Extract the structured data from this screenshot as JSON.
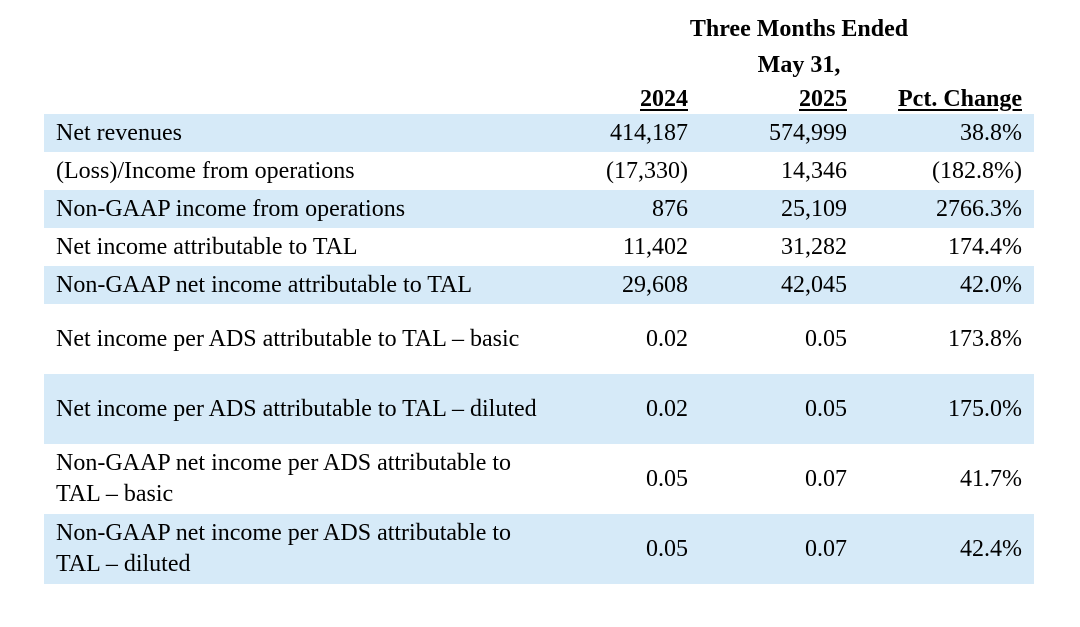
{
  "header": {
    "group_title_line1": "Three Months Ended",
    "group_title_line2": "May 31,",
    "col_2024": "2024",
    "col_2025": "2025",
    "col_pct": "Pct. Change"
  },
  "rows": [
    {
      "label": "Net revenues",
      "v2024": "414,187",
      "v2025": "574,999",
      "pct": "38.8%"
    },
    {
      "label": "(Loss)/Income from operations",
      "v2024": "(17,330)",
      "v2025": "14,346",
      "pct": "(182.8%)"
    },
    {
      "label": "Non-GAAP income from operations",
      "v2024": "876",
      "v2025": "25,109",
      "pct": "2766.3%"
    },
    {
      "label": "Net income attributable to TAL",
      "v2024": "11,402",
      "v2025": "31,282",
      "pct": "174.4%"
    },
    {
      "label": "Non-GAAP net income attributable to TAL",
      "v2024": "29,608",
      "v2025": "42,045",
      "pct": "42.0%"
    },
    {
      "label": "Net income per ADS attributable to TAL – basic",
      "v2024": "0.02",
      "v2025": "0.05",
      "pct": "173.8%"
    },
    {
      "label": "Net income per ADS attributable to TAL – diluted",
      "v2024": "0.02",
      "v2025": "0.05",
      "pct": "175.0%"
    },
    {
      "label": "Non-GAAP net income per ADS attributable to TAL – basic",
      "v2024": "0.05",
      "v2025": "0.07",
      "pct": "41.7%"
    },
    {
      "label": "Non-GAAP net income per ADS attributable to TAL – diluted",
      "v2024": "0.05",
      "v2025": "0.07",
      "pct": "42.4%"
    }
  ],
  "colors": {
    "row_shade": "#d6eaf8",
    "background": "#ffffff",
    "text": "#000000"
  }
}
